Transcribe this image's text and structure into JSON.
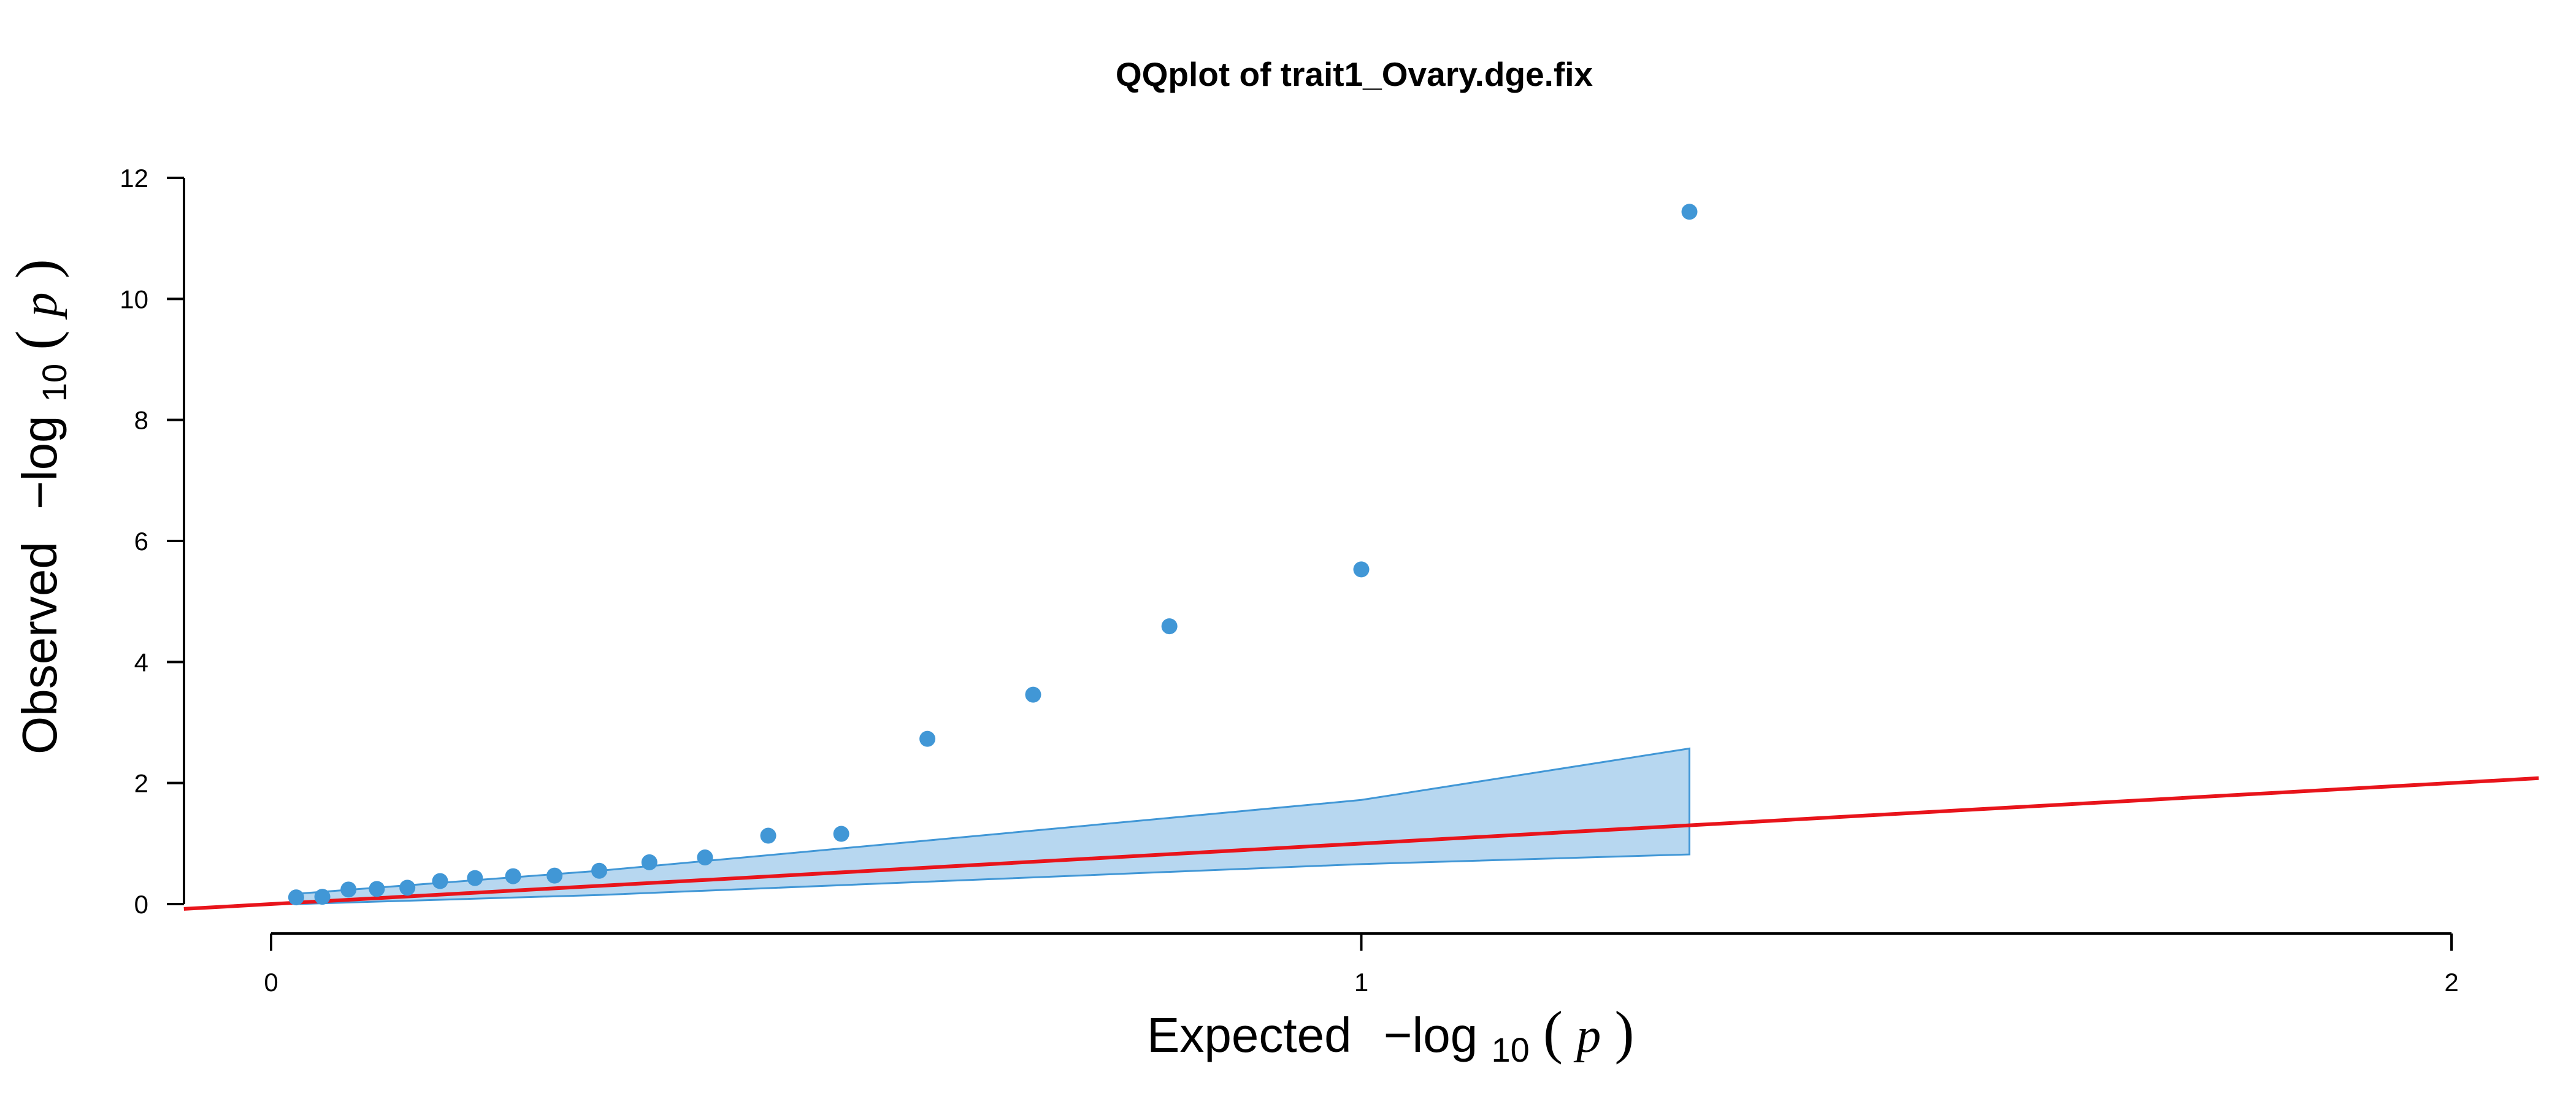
{
  "chart_data": {
    "type": "scatter",
    "title": "QQplot of trait1_Ovary.dge.fix",
    "xlabel": {
      "prefix": "Expected",
      "minus": "−log",
      "sub": "10",
      "open": "(",
      "p": "p",
      "close": ")"
    },
    "ylabel": {
      "prefix": "Observed",
      "minus": "−log",
      "sub": "10",
      "open": "(",
      "p": "p",
      "close": ")"
    },
    "xlim": [
      -0.08,
      2.08
    ],
    "ylim": [
      0,
      12
    ],
    "x_ticks": [
      0,
      1,
      2
    ],
    "y_ticks": [
      0,
      2,
      4,
      6,
      8,
      10,
      12
    ],
    "grid": false,
    "legend": "none",
    "colors": {
      "points": "#4197d6",
      "band_fill": "#b7d7f0",
      "band_edge": "#4197d6",
      "diagonal": "#e8141b"
    },
    "points": [
      {
        "x": 0.023,
        "y": 0.11
      },
      {
        "x": 0.047,
        "y": 0.12
      },
      {
        "x": 0.071,
        "y": 0.24
      },
      {
        "x": 0.097,
        "y": 0.25
      },
      {
        "x": 0.125,
        "y": 0.27
      },
      {
        "x": 0.155,
        "y": 0.38
      },
      {
        "x": 0.187,
        "y": 0.43
      },
      {
        "x": 0.222,
        "y": 0.46
      },
      {
        "x": 0.26,
        "y": 0.47
      },
      {
        "x": 0.301,
        "y": 0.55
      },
      {
        "x": 0.347,
        "y": 0.69
      },
      {
        "x": 0.398,
        "y": 0.77
      },
      {
        "x": 0.456,
        "y": 1.13
      },
      {
        "x": 0.523,
        "y": 1.16
      },
      {
        "x": 0.602,
        "y": 2.73
      },
      {
        "x": 0.699,
        "y": 3.46
      },
      {
        "x": 0.824,
        "y": 4.59
      },
      {
        "x": 1.0,
        "y": 5.53
      },
      {
        "x": 1.301,
        "y": 11.44
      }
    ],
    "confidence_band": {
      "x": [
        0.023,
        0.301,
        0.602,
        1.0,
        1.301
      ],
      "upper": [
        0.17,
        0.55,
        1.05,
        1.72,
        2.57
      ],
      "lower": [
        0.0,
        0.15,
        0.37,
        0.66,
        0.82
      ]
    },
    "diagonal": {
      "x": [
        -0.08,
        2.08
      ],
      "y": [
        -0.08,
        2.08
      ]
    }
  }
}
